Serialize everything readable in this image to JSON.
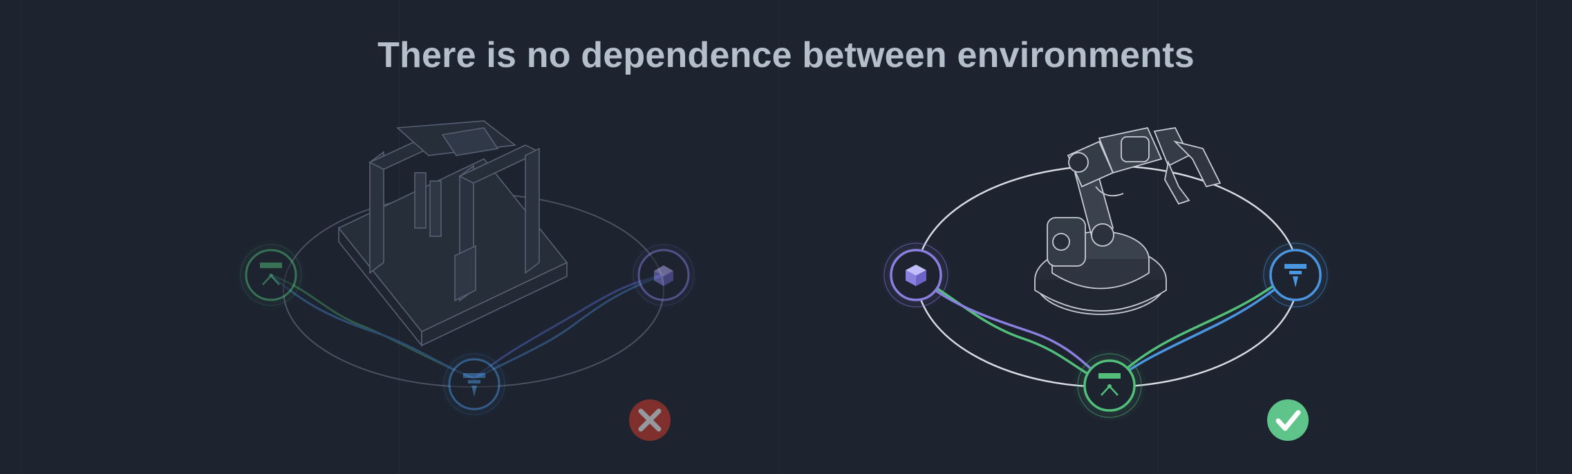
{
  "title": "There is no dependence between environments",
  "colors": {
    "background": "#1d2430",
    "title": "#b5bfcc",
    "green": "#53c07a",
    "blue": "#4b96e0",
    "purple": "#8a80e0",
    "error": "#c0392b",
    "success": "#5ec489"
  },
  "left_scenario": {
    "machine": "gantry-robot",
    "nodes": [
      "gripper-icon",
      "cube-icon",
      "drill-icon"
    ],
    "status": "fail-icon"
  },
  "right_scenario": {
    "machine": "robot-arm",
    "nodes": [
      "cube-icon",
      "drill-icon",
      "gripper-icon"
    ],
    "status": "success-icon"
  }
}
